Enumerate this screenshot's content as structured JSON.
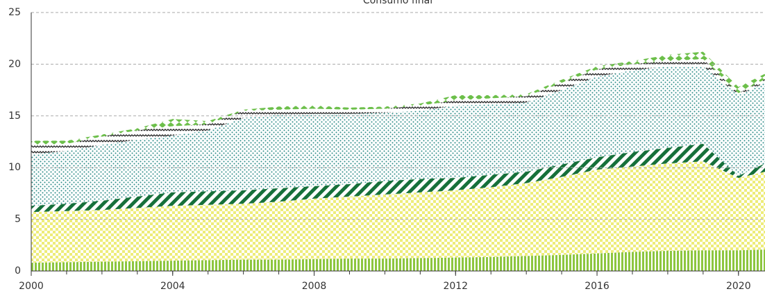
{
  "chart_data": {
    "type": "stacked_area",
    "title": "Consumo final",
    "x": [
      2000,
      2001,
      2002,
      2003,
      2004,
      2005,
      2006,
      2007,
      2008,
      2009,
      2010,
      2011,
      2012,
      2013,
      2014,
      2015,
      2016,
      2017,
      2018,
      2019,
      2020,
      2021
    ],
    "xlim": [
      2000,
      2020.75
    ],
    "xticks": [
      2000,
      2004,
      2008,
      2012,
      2016,
      2020
    ],
    "xminorticks": [
      2000,
      2001,
      2002,
      2003,
      2004,
      2005,
      2006,
      2007,
      2008,
      2009,
      2010,
      2011,
      2012,
      2013,
      2014,
      2015,
      2016,
      2017,
      2018,
      2019,
      2020
    ],
    "ylim": [
      0,
      25
    ],
    "yticks": [
      0,
      5,
      10,
      15,
      20,
      25
    ],
    "grid": true,
    "series": [
      {
        "color": "#8dc63f",
        "pattern": "vstripes",
        "values": [
          0.8,
          0.85,
          0.9,
          0.95,
          1.0,
          1.05,
          1.1,
          1.1,
          1.15,
          1.2,
          1.2,
          1.25,
          1.3,
          1.35,
          1.45,
          1.55,
          1.7,
          1.85,
          1.95,
          2.0,
          2.0,
          2.1
        ]
      },
      {
        "color": "#eeed7a",
        "pattern": "checker",
        "values": [
          4.9,
          4.95,
          5.0,
          5.15,
          5.3,
          5.35,
          5.4,
          5.6,
          5.85,
          6.0,
          6.2,
          6.35,
          6.5,
          6.75,
          7.05,
          7.55,
          8.1,
          8.25,
          8.45,
          8.6,
          7.0,
          7.7
        ]
      },
      {
        "color": "#16703a",
        "pattern": "diagonal",
        "values": [
          0.6,
          0.7,
          0.9,
          1.1,
          1.3,
          1.3,
          1.3,
          1.3,
          1.2,
          1.2,
          1.3,
          1.3,
          1.2,
          1.2,
          1.1,
          1.2,
          1.2,
          1.4,
          1.5,
          1.7,
          0.2,
          1.0
        ]
      },
      {
        "color": "#2a8a86",
        "pattern": "dots",
        "values": [
          5.0,
          5.1,
          5.4,
          5.5,
          5.5,
          5.9,
          7.0,
          7.1,
          7.0,
          6.8,
          6.6,
          6.6,
          7.0,
          6.8,
          6.7,
          7.2,
          7.8,
          7.9,
          7.9,
          7.5,
          7.8,
          7.8
        ]
      },
      {
        "color": "#222222",
        "pattern": "zigzag",
        "values": [
          0.9,
          0.7,
          0.8,
          0.9,
          0.9,
          0.6,
          0.7,
          0.5,
          0.5,
          0.4,
          0.4,
          0.5,
          0.5,
          0.6,
          0.6,
          0.7,
          0.7,
          0.6,
          0.5,
          0.7,
          0.2,
          0.4
        ]
      },
      {
        "color": "#6cbf4a",
        "pattern": "diamonds",
        "values": [
          0.4,
          0.3,
          0.2,
          0.2,
          0.7,
          0.3,
          0.1,
          0.3,
          0.3,
          0.2,
          0.2,
          0.2,
          0.5,
          0.3,
          0.2,
          0.3,
          0.3,
          0.3,
          0.6,
          0.7,
          0.6,
          0.5
        ]
      }
    ]
  }
}
